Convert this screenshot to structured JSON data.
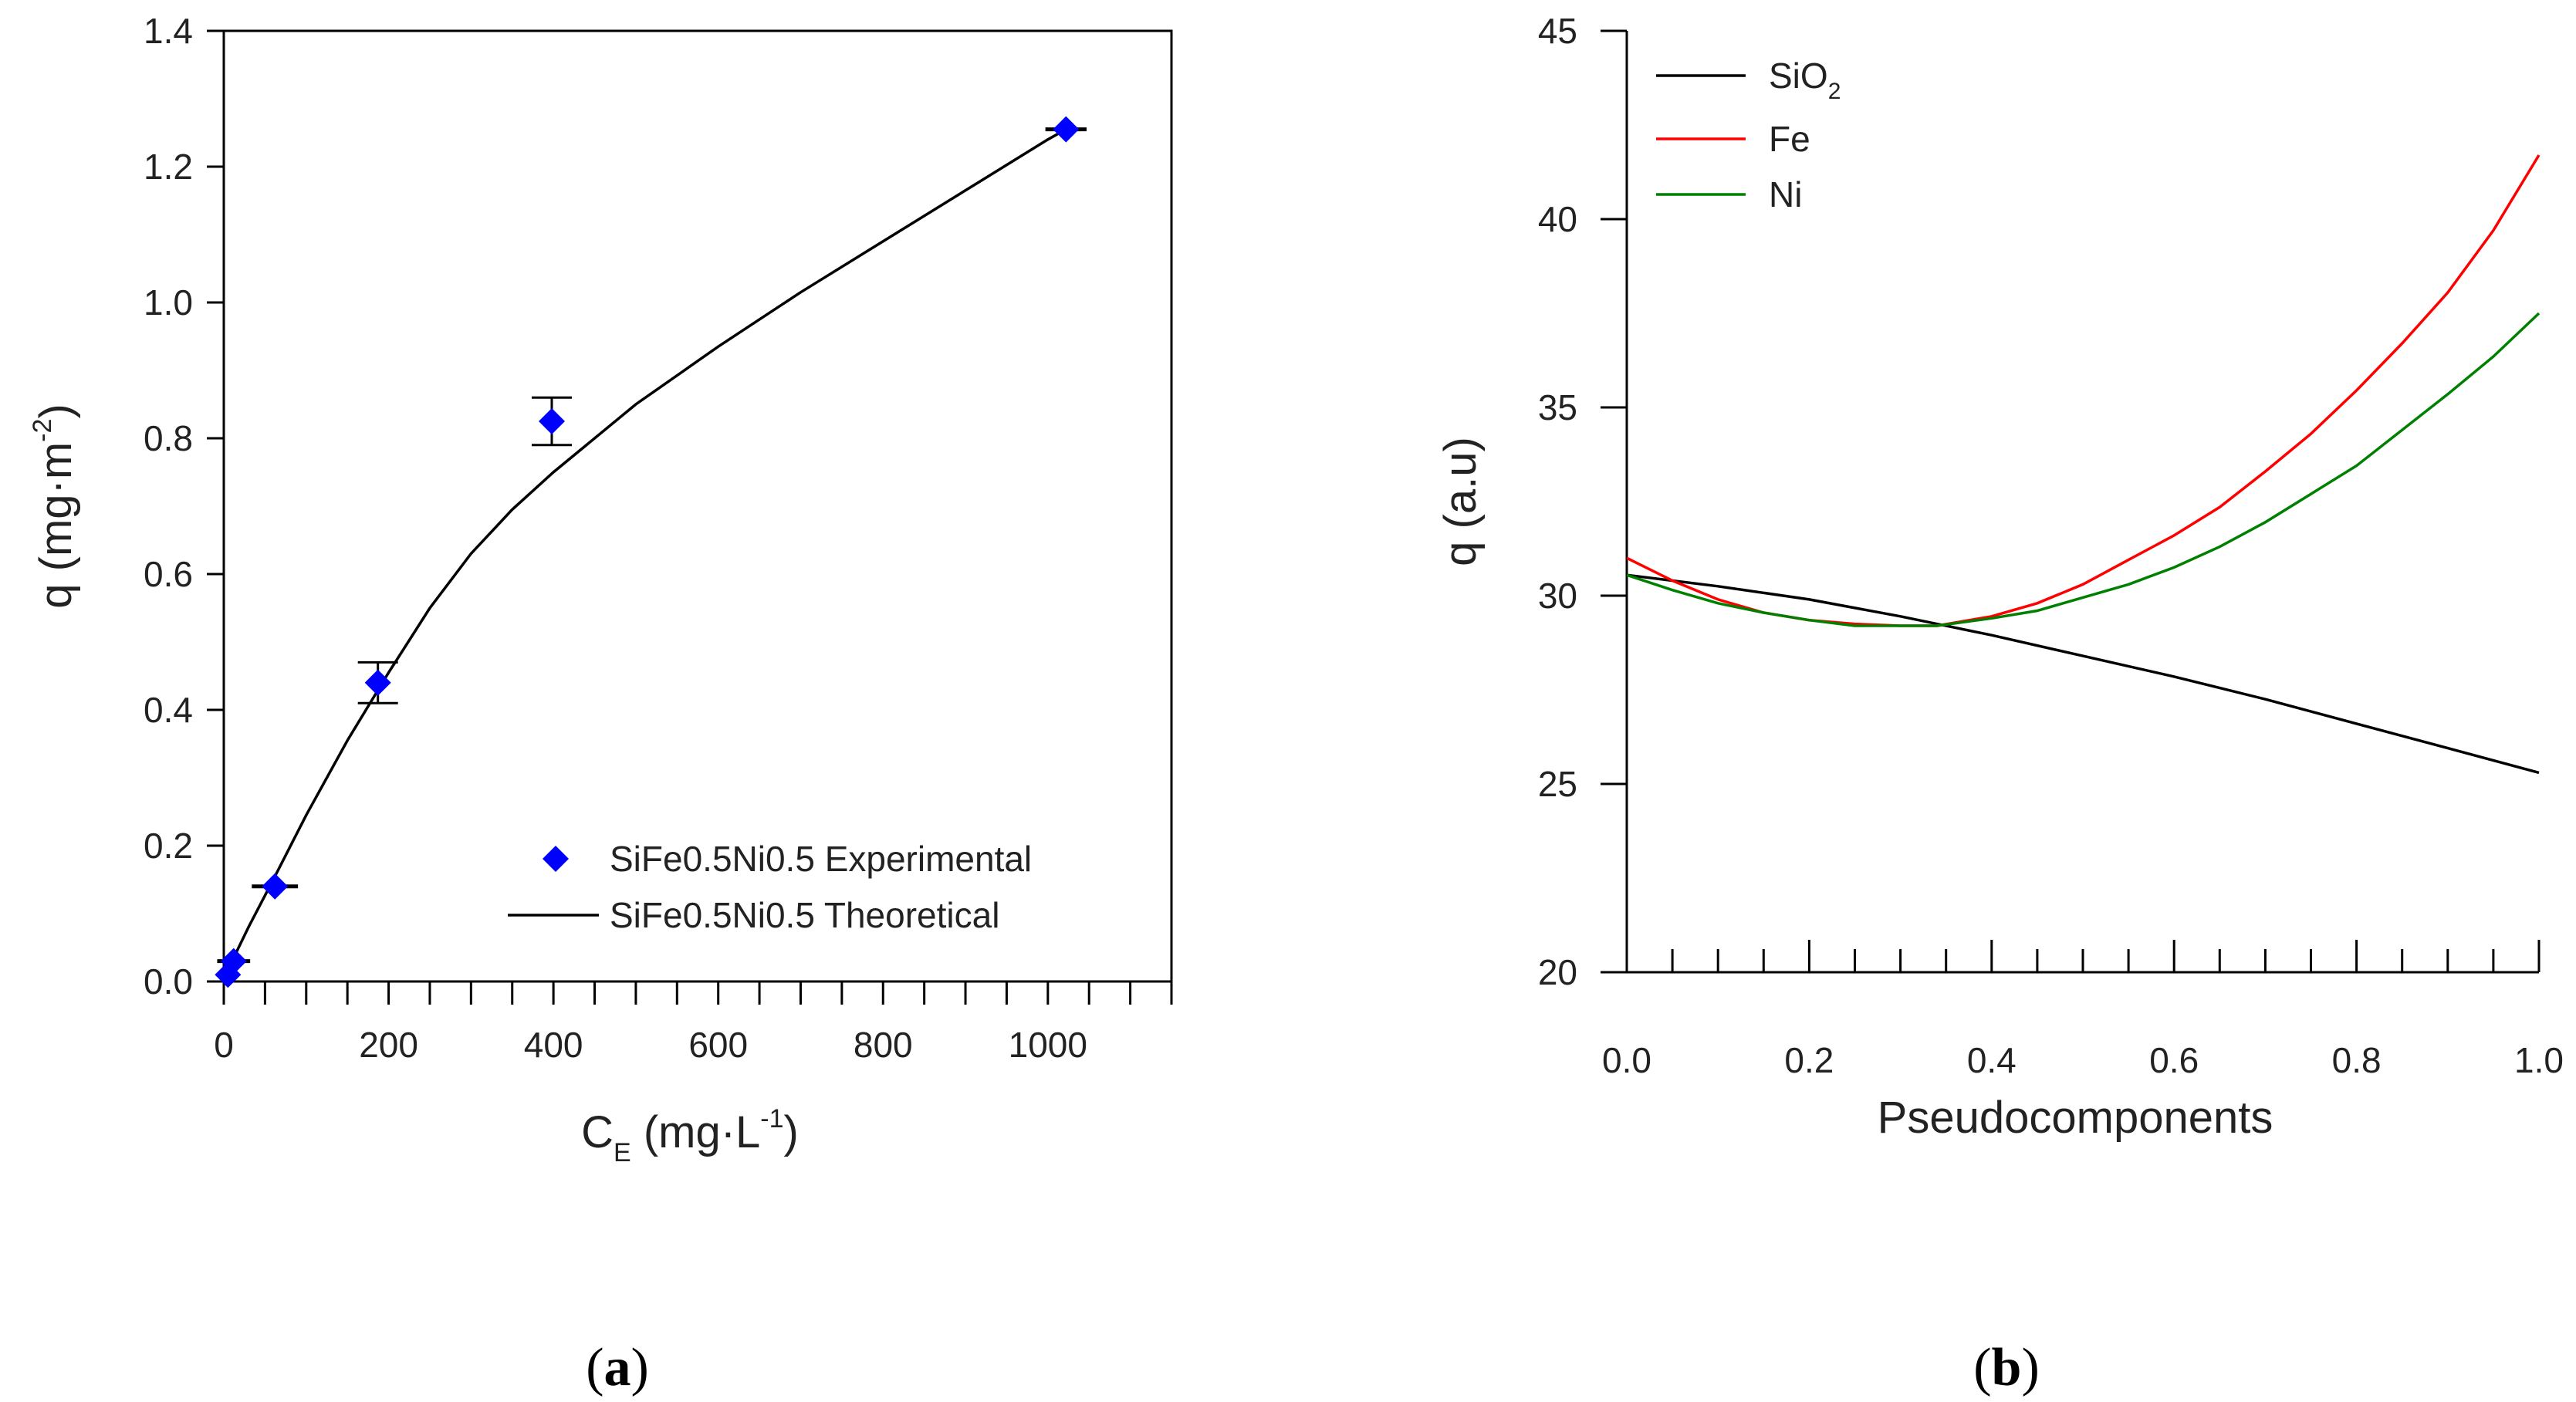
{
  "chart_data": [
    {
      "type": "scatter",
      "panel_label": "(a)",
      "panel_label_parts": {
        "open": "(",
        "letter": "a",
        "close": ")"
      },
      "xlabel": {
        "main": "C",
        "sub": "E",
        "unit_open": " (mg·L",
        "sup": "-1",
        "unit_close": ")"
      },
      "ylabel": {
        "main": "q (mg·m",
        "sup": "-2",
        "close": ")"
      },
      "xlim": [
        0,
        1150
      ],
      "ylim": [
        0,
        1.4
      ],
      "xticks": [
        0,
        200,
        400,
        600,
        800,
        1000
      ],
      "xtick_labels": [
        "0",
        "200",
        "400",
        "600",
        "800",
        "1000"
      ],
      "xminor": [
        50,
        100,
        150,
        250,
        300,
        350,
        450,
        500,
        550,
        650,
        700,
        750,
        850,
        900,
        950,
        1050,
        1100,
        1150
      ],
      "yticks": [
        0,
        0.2,
        0.4,
        0.6,
        0.8,
        1.0,
        1.2,
        1.4
      ],
      "ytick_labels": [
        "0.0",
        "0.2",
        "0.4",
        "0.6",
        "0.8",
        "1.0",
        "1.2",
        "1.4"
      ],
      "series": [
        {
          "name": "SiFe0.5Ni0.5 Experimental",
          "kind": "points",
          "color": "#0000ff",
          "x": [
            5,
            12,
            62,
            187,
            398,
            1022
          ],
          "y": [
            0.01,
            0.03,
            0.14,
            0.44,
            0.825,
            1.255
          ],
          "xerr": [
            0,
            20,
            28,
            0,
            0,
            25
          ],
          "yerr": [
            0,
            0,
            0,
            0.03,
            0.035,
            0
          ]
        },
        {
          "name": "SiFe0.5Ni0.5 Theoretical",
          "kind": "line",
          "color": "#000000",
          "x": [
            0,
            10,
            30,
            60,
            100,
            150,
            200,
            250,
            300,
            350,
            400,
            500,
            600,
            700,
            800,
            900,
            1000,
            1022
          ],
          "y": [
            0.0,
            0.03,
            0.08,
            0.15,
            0.245,
            0.355,
            0.455,
            0.55,
            0.63,
            0.695,
            0.75,
            0.85,
            0.935,
            1.015,
            1.09,
            1.165,
            1.24,
            1.255
          ]
        }
      ],
      "legend_position": "lower-right"
    },
    {
      "type": "line",
      "panel_label": "(b)",
      "panel_label_parts": {
        "open": "(",
        "letter": "b",
        "close": ")"
      },
      "xlabel": "Pseudocomponents",
      "ylabel": "q (a.u)",
      "xlim": [
        0,
        1.0
      ],
      "ylim": [
        20,
        45
      ],
      "xticks": [
        0.0,
        0.2,
        0.4,
        0.6,
        0.8,
        1.0
      ],
      "xtick_labels": [
        "0.0",
        "0.2",
        "0.4",
        "0.6",
        "0.8",
        "1.0"
      ],
      "xminor": [
        0.05,
        0.1,
        0.15,
        0.25,
        0.3,
        0.35,
        0.45,
        0.5,
        0.55,
        0.65,
        0.7,
        0.75,
        0.85,
        0.9,
        0.95
      ],
      "yticks": [
        20,
        25,
        30,
        35,
        40,
        45
      ],
      "ytick_labels": [
        "20",
        "25",
        "30",
        "35",
        "40",
        "45"
      ],
      "series": [
        {
          "name": "SiO2",
          "label_main": "SiO",
          "label_sub": "2",
          "color": "#000000",
          "x": [
            0,
            0.1,
            0.2,
            0.3,
            0.4,
            0.5,
            0.6,
            0.7,
            0.8,
            0.9,
            1.0
          ],
          "y": [
            30.55,
            30.25,
            29.9,
            29.45,
            28.95,
            28.4,
            27.85,
            27.25,
            26.6,
            25.95,
            25.3
          ]
        },
        {
          "name": "Fe",
          "color": "#ff0000",
          "x": [
            0,
            0.05,
            0.1,
            0.15,
            0.2,
            0.25,
            0.3,
            0.34,
            0.4,
            0.45,
            0.5,
            0.55,
            0.6,
            0.65,
            0.7,
            0.75,
            0.8,
            0.85,
            0.9,
            0.95,
            1.0
          ],
          "y": [
            31.0,
            30.4,
            29.9,
            29.55,
            29.35,
            29.25,
            29.2,
            29.2,
            29.45,
            29.8,
            30.3,
            30.95,
            31.6,
            32.35,
            33.3,
            34.3,
            35.45,
            36.7,
            38.05,
            39.7,
            41.7
          ]
        },
        {
          "name": "Ni",
          "color": "#008000",
          "x": [
            0,
            0.05,
            0.1,
            0.15,
            0.2,
            0.25,
            0.3,
            0.34,
            0.4,
            0.45,
            0.5,
            0.55,
            0.6,
            0.65,
            0.7,
            0.75,
            0.8,
            0.85,
            0.9,
            0.95,
            1.0
          ],
          "y": [
            30.55,
            30.15,
            29.8,
            29.55,
            29.35,
            29.2,
            29.2,
            29.2,
            29.4,
            29.6,
            29.95,
            30.3,
            30.75,
            31.3,
            31.95,
            32.7,
            33.45,
            34.4,
            35.35,
            36.35,
            37.5
          ]
        }
      ],
      "legend_position": "top-left"
    }
  ]
}
